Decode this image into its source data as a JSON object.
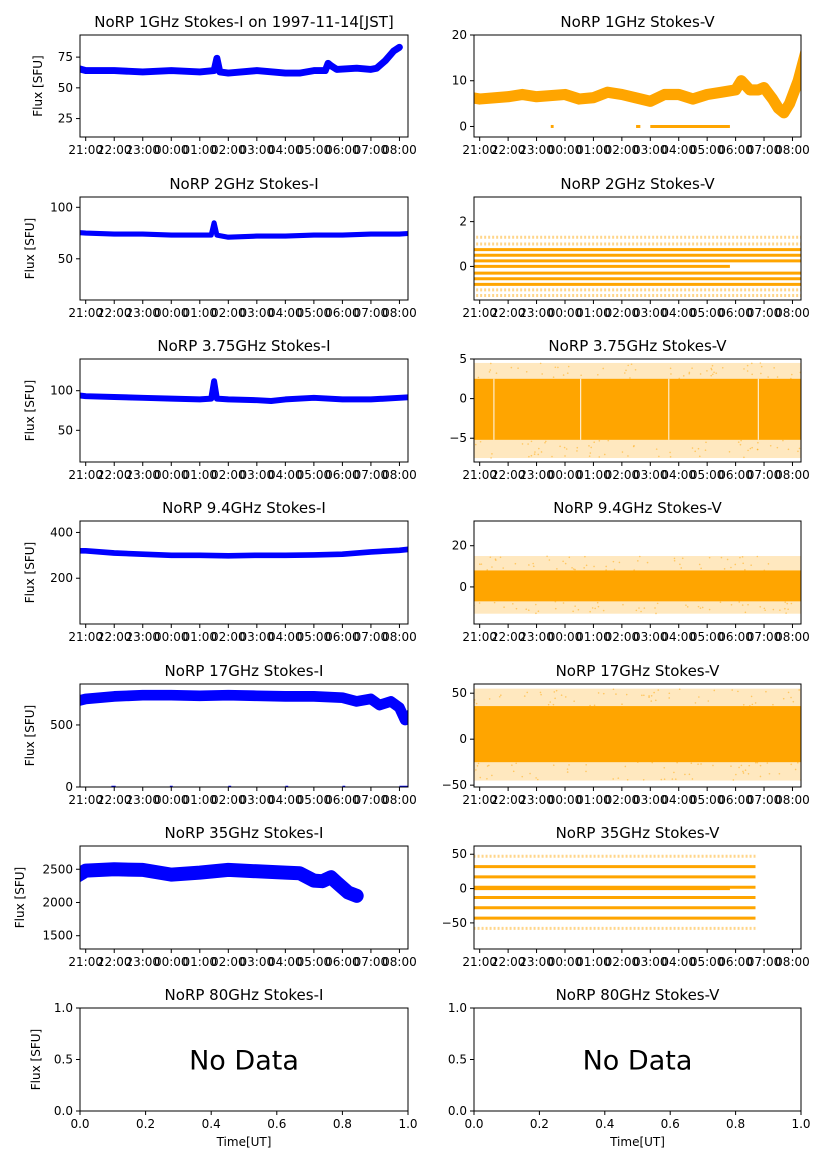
{
  "figure": {
    "colors": {
      "stokes_i": "#0000ff",
      "stokes_v": "#ffa500",
      "axis": "#000000"
    }
  },
  "chart_data": [
    {
      "id": "i1",
      "type": "scatter",
      "title": "NoRP 1GHz Stokes-I on 1997-11-14[JST]",
      "ylabel": "Flux [SFU]",
      "xlabel": "",
      "ylim": [
        10,
        93
      ],
      "yticks": [
        25,
        50,
        75
      ],
      "xticks": [
        "21:00",
        "22:00",
        "23:00",
        "00:00",
        "01:00",
        "02:00",
        "03:00",
        "04:00",
        "05:00",
        "06:00",
        "07:00",
        "08:00"
      ],
      "xlim_hours": [
        -3.2,
        8.3
      ],
      "color": "stokes_i",
      "spread": 2,
      "series": [
        [
          -0.7,
          40
        ],
        [
          -0.65,
          42
        ],
        [
          -0.6,
          62
        ],
        [
          -0.5,
          64
        ],
        [
          -0.3,
          66
        ],
        [
          0,
          64
        ],
        [
          1,
          64
        ],
        [
          2,
          63
        ],
        [
          3,
          64
        ],
        [
          4,
          63
        ],
        [
          4.5,
          64
        ],
        [
          4.6,
          74
        ],
        [
          4.7,
          63
        ],
        [
          5,
          62
        ],
        [
          6,
          64
        ],
        [
          7,
          62
        ],
        [
          7.5,
          62
        ],
        [
          8,
          64
        ],
        [
          8.4,
          64
        ],
        [
          8.5,
          70
        ],
        [
          8.6,
          68
        ],
        [
          8.8,
          65
        ],
        [
          9.5,
          66
        ],
        [
          10,
          65
        ],
        [
          10.2,
          66
        ],
        [
          10.5,
          72
        ],
        [
          10.8,
          80
        ],
        [
          11,
          83
        ]
      ]
    },
    {
      "id": "v1",
      "type": "scatter",
      "title": "NoRP 1GHz Stokes-V",
      "ylabel": "",
      "xlabel": "",
      "ylim": [
        -2.3,
        20
      ],
      "yticks": [
        0,
        10,
        20
      ],
      "xticks": [
        "21:00",
        "22:00",
        "23:00",
        "00:00",
        "01:00",
        "02:00",
        "03:00",
        "04:00",
        "05:00",
        "06:00",
        "07:00",
        "08:00"
      ],
      "xlim_hours": [
        -3.2,
        8.3
      ],
      "color": "stokes_v",
      "spread": 1,
      "segments": [
        [
          -2.7,
          -1.7,
          0
        ],
        [
          -0.5,
          -0.35,
          0
        ],
        [
          2.5,
          2.6,
          0
        ],
        [
          5.5,
          5.65,
          0
        ],
        [
          6,
          8.8,
          0
        ]
      ],
      "series": [
        [
          -1.0,
          5
        ],
        [
          -0.8,
          6
        ],
        [
          -0.5,
          6.5
        ],
        [
          0,
          6
        ],
        [
          1,
          6.5
        ],
        [
          1.5,
          7
        ],
        [
          2,
          6.5
        ],
        [
          3,
          7
        ],
        [
          3.5,
          6
        ],
        [
          4,
          6.3
        ],
        [
          4.5,
          7.5
        ],
        [
          5,
          7
        ],
        [
          6,
          5.5
        ],
        [
          6.5,
          7
        ],
        [
          7,
          7
        ],
        [
          7.5,
          6
        ],
        [
          8,
          7
        ],
        [
          8.5,
          7.5
        ],
        [
          9,
          8
        ],
        [
          9.2,
          10
        ],
        [
          9.5,
          8
        ],
        [
          9.8,
          8
        ],
        [
          10,
          8.5
        ],
        [
          10.3,
          6
        ],
        [
          10.5,
          4
        ],
        [
          10.7,
          3
        ],
        [
          10.9,
          5
        ],
        [
          11.2,
          10
        ],
        [
          11.5,
          17
        ],
        [
          11.7,
          20
        ]
      ]
    },
    {
      "id": "i2",
      "type": "scatter",
      "title": "NoRP 2GHz Stokes-I",
      "ylabel": "Flux [SFU]",
      "xlabel": "",
      "ylim": [
        10,
        110
      ],
      "yticks": [
        50,
        100
      ],
      "xticks": [
        "21:00",
        "22:00",
        "23:00",
        "00:00",
        "01:00",
        "02:00",
        "03:00",
        "04:00",
        "05:00",
        "06:00",
        "07:00",
        "08:00"
      ],
      "xlim_hours": [
        -3.2,
        8.3
      ],
      "color": "stokes_i",
      "spread": 1.5,
      "series": [
        [
          -1.2,
          40
        ],
        [
          -1.15,
          82
        ],
        [
          -1.05,
          88
        ],
        [
          -0.9,
          80
        ],
        [
          -0.6,
          76
        ],
        [
          0,
          75
        ],
        [
          1,
          74
        ],
        [
          2,
          74
        ],
        [
          3,
          73
        ],
        [
          4,
          73
        ],
        [
          4.4,
          73
        ],
        [
          4.5,
          85
        ],
        [
          4.6,
          73
        ],
        [
          5,
          71
        ],
        [
          6,
          72
        ],
        [
          7,
          72
        ],
        [
          8,
          73
        ],
        [
          9,
          73
        ],
        [
          10,
          74
        ],
        [
          11,
          74
        ],
        [
          11.5,
          75
        ],
        [
          11.6,
          72
        ],
        [
          11.8,
          95
        ],
        [
          11.9,
          98
        ],
        [
          12.0,
          90
        ],
        [
          12.2,
          45
        ],
        [
          12.25,
          40
        ]
      ]
    },
    {
      "id": "v2",
      "type": "dotted-levels",
      "title": "NoRP 2GHz Stokes-V",
      "ylabel": "",
      "xlabel": "",
      "ylim": [
        -1.5,
        3.1
      ],
      "yticks": [
        0,
        2
      ],
      "xticks": [
        "21:00",
        "22:00",
        "23:00",
        "00:00",
        "01:00",
        "02:00",
        "03:00",
        "04:00",
        "05:00",
        "06:00",
        "07:00",
        "08:00"
      ],
      "xlim_hours": [
        -3.2,
        8.3
      ],
      "color": "stokes_v",
      "zero_line": [
        -2.7,
        8.8
      ],
      "levels": [
        [
          -1.3,
          0.25
        ],
        [
          -1.05,
          0.5
        ],
        [
          -0.8,
          1
        ],
        [
          -0.55,
          1
        ],
        [
          -0.3,
          1
        ],
        [
          0.25,
          1
        ],
        [
          0.5,
          1
        ],
        [
          0.75,
          1
        ],
        [
          1.0,
          0.55
        ],
        [
          1.3,
          0.2
        ]
      ],
      "active": [
        -1.25,
        12.3
      ]
    },
    {
      "id": "i3",
      "type": "scatter",
      "title": "NoRP 3.75GHz Stokes-I",
      "ylabel": "Flux [SFU]",
      "xlabel": "",
      "ylim": [
        10,
        140
      ],
      "yticks": [
        50,
        100
      ],
      "xticks": [
        "21:00",
        "22:00",
        "23:00",
        "00:00",
        "01:00",
        "02:00",
        "03:00",
        "04:00",
        "05:00",
        "06:00",
        "07:00",
        "08:00"
      ],
      "xlim_hours": [
        -3.2,
        8.3
      ],
      "color": "stokes_i",
      "spread": 2.5,
      "series": [
        [
          -1.2,
          60
        ],
        [
          -1.15,
          110
        ],
        [
          -1.05,
          115
        ],
        [
          -0.9,
          105
        ],
        [
          -0.7,
          96
        ],
        [
          0,
          93
        ],
        [
          1,
          92
        ],
        [
          2,
          91
        ],
        [
          3,
          90
        ],
        [
          4,
          89
        ],
        [
          4.4,
          90
        ],
        [
          4.5,
          112
        ],
        [
          4.6,
          90
        ],
        [
          5,
          89
        ],
        [
          6,
          88
        ],
        [
          6.5,
          87
        ],
        [
          7,
          89
        ],
        [
          8,
          91
        ],
        [
          9,
          89
        ],
        [
          10,
          89
        ],
        [
          11,
          91
        ],
        [
          11.5,
          92
        ],
        [
          11.6,
          96
        ],
        [
          11.8,
          120
        ],
        [
          11.9,
          122
        ],
        [
          12.05,
          90
        ],
        [
          12.15,
          60
        ]
      ]
    },
    {
      "id": "v3",
      "type": "noise-band",
      "title": "NoRP 3.75GHz Stokes-V",
      "ylabel": "",
      "xlabel": "",
      "ylim": [
        -8,
        5
      ],
      "yticks": [
        -5,
        0,
        5
      ],
      "xticks": [
        "21:00",
        "22:00",
        "23:00",
        "00:00",
        "01:00",
        "02:00",
        "03:00",
        "04:00",
        "05:00",
        "06:00",
        "07:00",
        "08:00"
      ],
      "xlim_hours": [
        -3.2,
        8.3
      ],
      "color": "stokes_v",
      "zero_line": [
        -2.7,
        8.8
      ],
      "band": {
        "x": [
          -1.2,
          12.2
        ],
        "low": -5.2,
        "high": 2.5,
        "outer_low": -7.5,
        "outer_high": 4.5
      },
      "gaps": [
        0.5,
        3.55,
        6.65,
        9.8
      ]
    },
    {
      "id": "i4",
      "type": "scatter",
      "title": "NoRP 9.4GHz Stokes-I",
      "ylabel": "Flux [SFU]",
      "xlabel": "",
      "ylim": [
        0,
        450
      ],
      "yticks": [
        200,
        400
      ],
      "xticks": [
        "21:00",
        "22:00",
        "23:00",
        "00:00",
        "01:00",
        "02:00",
        "03:00",
        "04:00",
        "05:00",
        "06:00",
        "07:00",
        "08:00"
      ],
      "xlim_hours": [
        -3.2,
        8.3
      ],
      "color": "stokes_i",
      "spread": 8,
      "series": [
        [
          -2.7,
          205
        ],
        [
          -2.3,
          205
        ],
        [
          -2.0,
          205
        ],
        [
          -1.8,
          205
        ],
        [
          -1.25,
          200
        ],
        [
          -1.15,
          400
        ],
        [
          -1.0,
          405
        ],
        [
          -0.9,
          330
        ],
        [
          -0.6,
          320
        ],
        [
          0,
          320
        ],
        [
          1,
          310
        ],
        [
          2,
          305
        ],
        [
          3,
          300
        ],
        [
          4,
          300
        ],
        [
          5,
          298
        ],
        [
          6,
          300
        ],
        [
          7,
          300
        ],
        [
          8,
          302
        ],
        [
          9,
          305
        ],
        [
          10,
          315
        ],
        [
          11,
          322
        ],
        [
          11.6,
          330
        ],
        [
          11.8,
          400
        ],
        [
          11.9,
          330
        ],
        [
          12.0,
          220
        ],
        [
          12.2,
          210
        ],
        [
          12.5,
          230
        ],
        [
          12.8,
          230
        ],
        [
          13,
          220
        ],
        [
          13.1,
          205
        ]
      ]
    },
    {
      "id": "v4",
      "type": "noise-band",
      "title": "NoRP 9.4GHz Stokes-V",
      "ylabel": "",
      "xlabel": "",
      "ylim": [
        -18,
        32
      ],
      "yticks": [
        0,
        20
      ],
      "xticks": [
        "21:00",
        "22:00",
        "23:00",
        "00:00",
        "01:00",
        "02:00",
        "03:00",
        "04:00",
        "05:00",
        "06:00",
        "07:00",
        "08:00"
      ],
      "xlim_hours": [
        -3.2,
        8.3
      ],
      "color": "stokes_v",
      "zero_line": [
        -2.7,
        8.8
      ],
      "band": {
        "x": [
          -1.2,
          13.0
        ],
        "low": -7,
        "high": 8,
        "outer_low": -13,
        "outer_high": 15
      },
      "pre_band": {
        "x": [
          -2.7,
          -2.3
        ],
        "low": -6,
        "high": 6
      },
      "gaps": []
    },
    {
      "id": "i5",
      "type": "scatter",
      "title": "NoRP 17GHz Stokes-I",
      "ylabel": "Flux [SFU]",
      "xlabel": "",
      "ylim": [
        0,
        830
      ],
      "yticks": [
        0,
        500
      ],
      "xticks": [
        "21:00",
        "22:00",
        "23:00",
        "00:00",
        "01:00",
        "02:00",
        "03:00",
        "04:00",
        "05:00",
        "06:00",
        "07:00",
        "08:00"
      ],
      "xlim_hours": [
        -3.2,
        8.3
      ],
      "color": "stokes_i",
      "spread": 35,
      "series": [
        [
          -1.2,
          420
        ],
        [
          -1.15,
          660
        ],
        [
          -0.5,
          680
        ],
        [
          0,
          710
        ],
        [
          1,
          730
        ],
        [
          2,
          740
        ],
        [
          3,
          740
        ],
        [
          4,
          735
        ],
        [
          5,
          740
        ],
        [
          6,
          735
        ],
        [
          7,
          730
        ],
        [
          8,
          730
        ],
        [
          9,
          720
        ],
        [
          9.5,
          690
        ],
        [
          10,
          710
        ],
        [
          10.3,
          660
        ],
        [
          10.7,
          690
        ],
        [
          11.0,
          640
        ],
        [
          11.2,
          540
        ],
        [
          11.5,
          610
        ],
        [
          11.8,
          630
        ],
        [
          12,
          600
        ],
        [
          12.1,
          420
        ]
      ],
      "baseline_segments": [
        [
          -2.7,
          -1.2
        ],
        [
          0.9,
          1.05
        ],
        [
          2.95,
          3.05
        ],
        [
          5.0,
          5.1
        ],
        [
          7.0,
          7.1
        ],
        [
          9.0,
          9.1
        ],
        [
          11.0,
          12.0
        ]
      ]
    },
    {
      "id": "v5",
      "type": "noise-band",
      "title": "NoRP 17GHz Stokes-V",
      "ylabel": "",
      "xlabel": "",
      "ylim": [
        -52,
        60
      ],
      "yticks": [
        -50,
        0,
        50
      ],
      "xticks": [
        "21:00",
        "22:00",
        "23:00",
        "00:00",
        "01:00",
        "02:00",
        "03:00",
        "04:00",
        "05:00",
        "06:00",
        "07:00",
        "08:00"
      ],
      "xlim_hours": [
        -3.2,
        8.3
      ],
      "color": "stokes_v",
      "zero_line": [
        -2.7,
        8.8
      ],
      "band": {
        "x": [
          -1.2,
          12.1
        ],
        "low": -25,
        "high": 36,
        "outer_low": -45,
        "outer_high": 55
      },
      "gaps": []
    },
    {
      "id": "i6",
      "type": "scatter",
      "title": "NoRP 35GHz Stokes-I",
      "ylabel": "Flux [SFU]",
      "xlabel": "",
      "ylim": [
        1300,
        2850
      ],
      "yticks": [
        1500,
        2000,
        2500
      ],
      "xticks": [
        "21:00",
        "22:00",
        "23:00",
        "00:00",
        "01:00",
        "02:00",
        "03:00",
        "04:00",
        "05:00",
        "06:00",
        "07:00",
        "08:00"
      ],
      "xlim_hours": [
        -3.2,
        8.3
      ],
      "color": "stokes_i",
      "spread": 110,
      "series": [
        [
          -1.2,
          2100
        ],
        [
          -1.0,
          2250
        ],
        [
          -0.7,
          2300
        ],
        [
          -0.5,
          2350
        ],
        [
          0,
          2480
        ],
        [
          1,
          2500
        ],
        [
          2,
          2490
        ],
        [
          3,
          2420
        ],
        [
          4,
          2450
        ],
        [
          5,
          2490
        ],
        [
          6,
          2470
        ],
        [
          7,
          2450
        ],
        [
          7.5,
          2440
        ],
        [
          8,
          2330
        ],
        [
          8.3,
          2320
        ],
        [
          8.6,
          2380
        ],
        [
          8.8,
          2300
        ],
        [
          9.2,
          2150
        ],
        [
          9.5,
          2100
        ]
      ]
    },
    {
      "id": "v6",
      "type": "dotted-levels",
      "title": "NoRP 35GHz Stokes-V",
      "ylabel": "",
      "xlabel": "",
      "ylim": [
        -88,
        62
      ],
      "yticks": [
        -50,
        0,
        50
      ],
      "xticks": [
        "21:00",
        "22:00",
        "23:00",
        "00:00",
        "01:00",
        "02:00",
        "03:00",
        "04:00",
        "05:00",
        "06:00",
        "07:00",
        "08:00"
      ],
      "xlim_hours": [
        -3.2,
        8.3
      ],
      "color": "stokes_v",
      "zero_line": [
        -2.7,
        8.8
      ],
      "levels": [
        [
          -58,
          0.3
        ],
        [
          -43,
          1
        ],
        [
          -28,
          1
        ],
        [
          -13,
          1
        ],
        [
          2,
          1
        ],
        [
          17,
          1
        ],
        [
          32,
          1
        ],
        [
          47,
          0.35
        ]
      ],
      "active": [
        -1.2,
        9.7
      ]
    },
    {
      "id": "i7",
      "type": "empty",
      "title": "NoRP 80GHz Stokes-I",
      "ylabel": "Flux [SFU]",
      "xlabel": "Time[UT]",
      "ylim": [
        0,
        1
      ],
      "yticks": [
        "0.0",
        "0.5",
        "1.0"
      ],
      "xticks": [
        "0.0",
        "0.2",
        "0.4",
        "0.6",
        "0.8",
        "1.0"
      ],
      "annotation": "No Data"
    },
    {
      "id": "v7",
      "type": "empty",
      "title": "NoRP 80GHz Stokes-V",
      "ylabel": "",
      "xlabel": "Time[UT]",
      "ylim": [
        0,
        1
      ],
      "yticks": [
        "0.0",
        "0.5",
        "1.0"
      ],
      "xticks": [
        "0.0",
        "0.2",
        "0.4",
        "0.6",
        "0.8",
        "1.0"
      ],
      "annotation": "No Data"
    }
  ]
}
